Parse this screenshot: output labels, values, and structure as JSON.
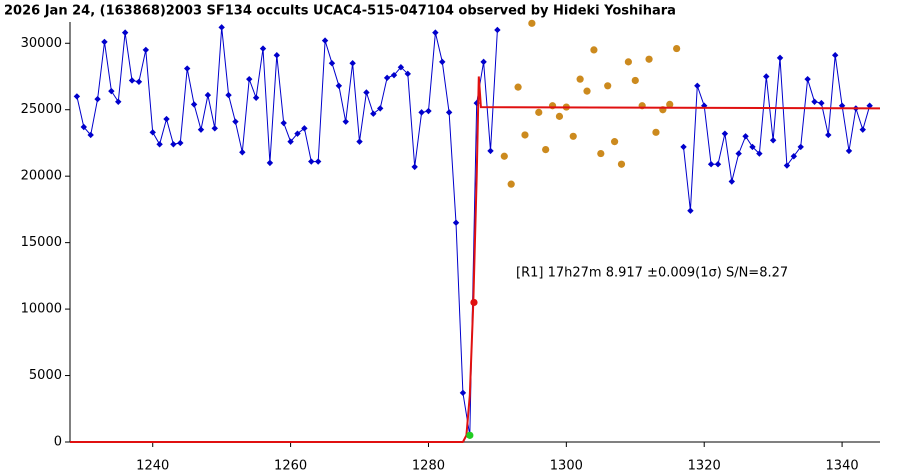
{
  "chart_data": {
    "type": "line",
    "title": "2026 Jan 24, (163868)2003 SF134 occults UCAC4-515-047104 observed by Hideki Yoshihara",
    "annotation": "[R1] 17h27m 8.917 ±0.009(1σ) S/N=8.27",
    "xlim": [
      1228,
      1345.5
    ],
    "ylim": [
      0,
      31600
    ],
    "xticks": [
      1240,
      1260,
      1280,
      1300,
      1320,
      1340
    ],
    "yticks": [
      0,
      5000,
      10000,
      15000,
      20000,
      25000,
      30000
    ],
    "series": [
      {
        "color": "#0000cc",
        "line": true,
        "marker": "diamond",
        "x": [
          1229,
          1230,
          1231,
          1232,
          1233,
          1234,
          1235,
          1236,
          1237,
          1238,
          1239,
          1240,
          1241,
          1242,
          1243,
          1244,
          1245,
          1246,
          1247,
          1248,
          1249,
          1250,
          1251,
          1252,
          1253,
          1254,
          1255,
          1256,
          1257,
          1258,
          1259,
          1260,
          1261,
          1262,
          1263,
          1264,
          1265,
          1266,
          1267,
          1268,
          1269,
          1270,
          1271,
          1272,
          1273,
          1274,
          1275,
          1276,
          1277,
          1278,
          1279,
          1280,
          1281,
          1282,
          1283,
          1284,
          1285,
          1286,
          1287,
          1288,
          1289,
          1290,
          1291,
          1292,
          1293,
          1294,
          1295,
          1296,
          1297,
          1298,
          1299,
          1300,
          1301,
          1302,
          1303,
          1304,
          1305,
          1306,
          1307,
          1308,
          1309,
          1310,
          1311,
          1312,
          1313,
          1314,
          1315,
          1316,
          1317,
          1318,
          1319,
          1320,
          1321,
          1322,
          1323,
          1324,
          1325,
          1326,
          1327,
          1328,
          1329,
          1330,
          1331,
          1332,
          1333,
          1334,
          1335,
          1336,
          1337,
          1338,
          1339,
          1340,
          1341,
          1342,
          1343,
          1344
        ],
        "values": [
          26000,
          23700,
          23100,
          25800,
          30100,
          26400,
          25600,
          30800,
          27200,
          27100,
          29500,
          23300,
          22400,
          24300,
          22400,
          22500,
          28100,
          25400,
          23500,
          26100,
          23600,
          31200,
          26100,
          24100,
          21800,
          27300,
          25900,
          29600,
          21000,
          29100,
          24000,
          22600,
          23200,
          23600,
          21100,
          21100,
          30200,
          28500,
          26800,
          24100,
          28500,
          22600,
          26300,
          24700,
          25100,
          27400,
          27600,
          28200,
          27700,
          20700,
          24800,
          24900,
          30800,
          28600,
          24800,
          16500,
          3700,
          500,
          25500,
          28600,
          21900,
          31000,
          null,
          null,
          null,
          null,
          null,
          null,
          null,
          null,
          null,
          null,
          null,
          null,
          null,
          null,
          null,
          null,
          null,
          null,
          null,
          null,
          null,
          null,
          null,
          null,
          null,
          null,
          22200,
          17400,
          26800,
          25300,
          20900,
          20900,
          23200,
          19600,
          21700,
          23000,
          22200,
          21700,
          27500,
          22700,
          28900,
          20800,
          21500,
          22200,
          27300,
          25600,
          25500,
          23100,
          29100,
          25300,
          21900,
          25100,
          23500,
          25300
        ]
      },
      {
        "color": "#cc8a1e",
        "line": false,
        "marker": "circle",
        "x": [
          1291,
          1292,
          1293,
          1294,
          1295,
          1296,
          1297,
          1298,
          1299,
          1300,
          1301,
          1302,
          1303,
          1304,
          1305,
          1306,
          1307,
          1308,
          1309,
          1310,
          1311,
          1312,
          1313,
          1314,
          1315,
          1316
        ],
        "values": [
          21500,
          19400,
          26700,
          23100,
          31500,
          24800,
          22000,
          25300,
          24500,
          25200,
          23000,
          27300,
          26400,
          29500,
          21700,
          26800,
          22600,
          20900,
          28600,
          27200,
          25300,
          28800,
          23300,
          25000,
          25400,
          29600
        ]
      },
      {
        "color": "#e01010",
        "line": true,
        "marker": "none",
        "x": [
          1228,
          1285,
          1285.5,
          1286,
          1286.5,
          1287,
          1287.3,
          1287.6,
          1345.5
        ],
        "values": [
          0,
          0,
          500,
          3500,
          10500,
          20000,
          27500,
          25200,
          25100
        ]
      },
      {
        "color": "#22cc22",
        "line": false,
        "marker": "circle",
        "x": [
          1286
        ],
        "values": [
          500
        ]
      },
      {
        "color": "#e01010",
        "line": false,
        "marker": "circle",
        "x": [
          1286.6
        ],
        "values": [
          10500
        ]
      }
    ]
  }
}
